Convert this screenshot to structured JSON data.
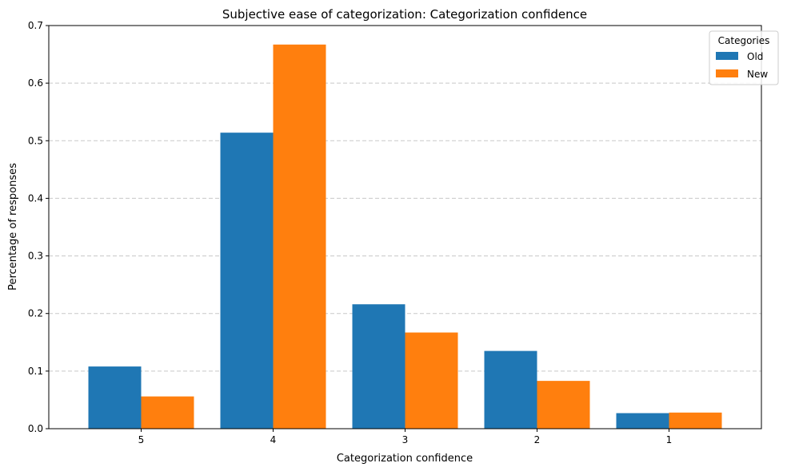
{
  "chart_data": {
    "type": "bar",
    "title": "Subjective ease of categorization: Categorization confidence",
    "xlabel": "Categorization confidence",
    "ylabel": "Percentage of responses",
    "categories": [
      "5",
      "4",
      "3",
      "2",
      "1"
    ],
    "series": [
      {
        "name": "Old",
        "values": [
          0.108,
          0.514,
          0.216,
          0.135,
          0.027
        ],
        "color": "#1f77b4"
      },
      {
        "name": "New",
        "values": [
          0.056,
          0.667,
          0.167,
          0.083,
          0.028
        ],
        "color": "#ff7f0e"
      }
    ],
    "ylim": [
      0,
      0.7
    ],
    "yticks": [
      "0.0",
      "0.1",
      "0.2",
      "0.3",
      "0.4",
      "0.5",
      "0.6",
      "0.7"
    ],
    "grid": "y-dashed",
    "legend": {
      "title": "Categories",
      "placement": "top-right"
    }
  }
}
